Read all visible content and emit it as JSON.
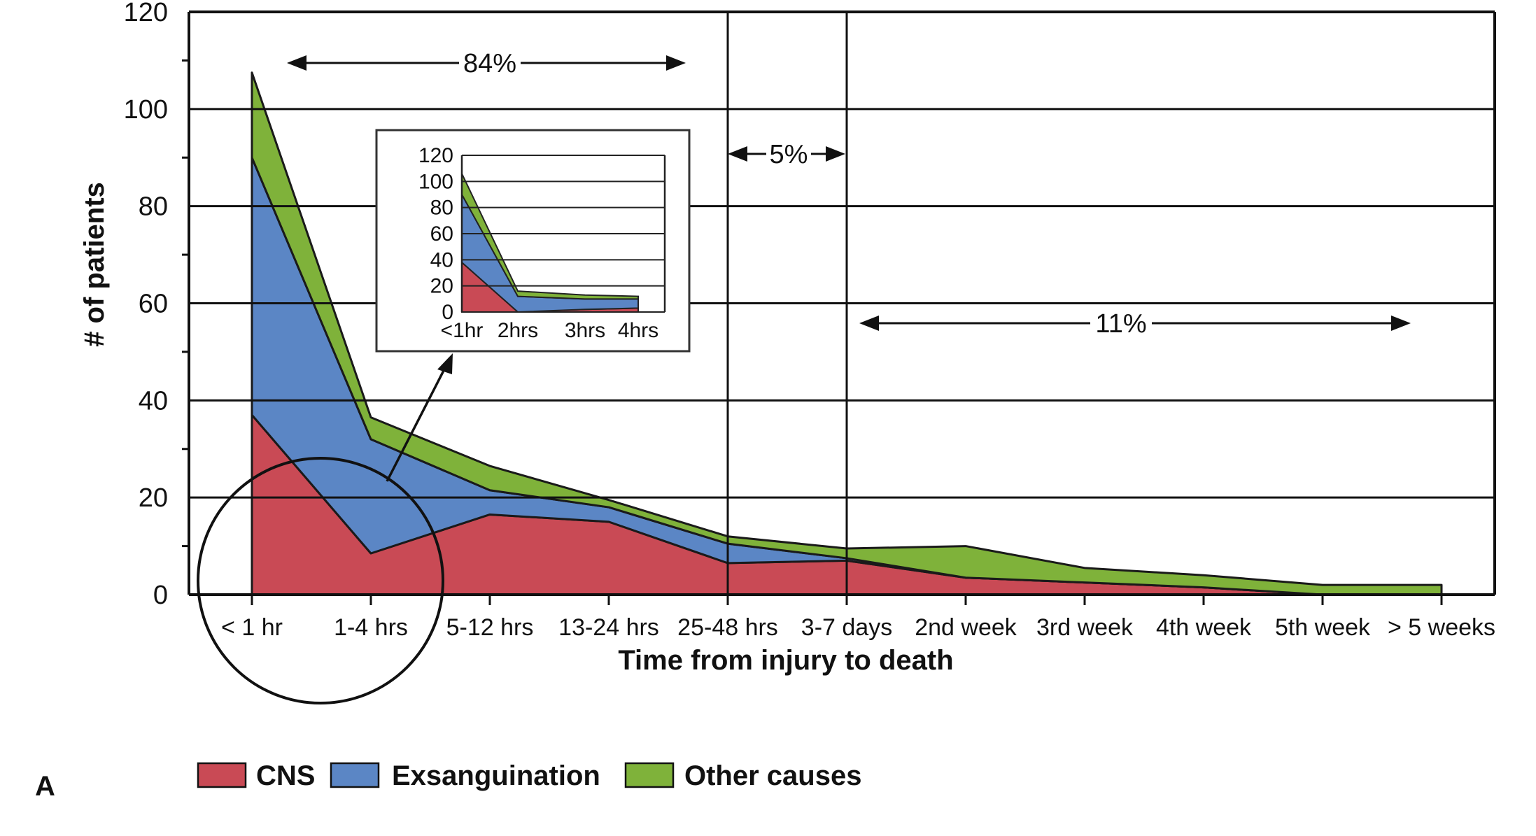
{
  "chart_data": {
    "type": "area",
    "stacked": true,
    "title": "",
    "xlabel": "Time from injury to death",
    "ylabel": "# of patients",
    "ylim": [
      0,
      120
    ],
    "yticks": [
      0,
      20,
      40,
      60,
      80,
      100,
      120
    ],
    "grid": true,
    "legend_position": "bottom-left",
    "categories": [
      "< 1 hr",
      "1-4 hrs",
      "5-12 hrs",
      "13-24 hrs",
      "25-48 hrs",
      "3-7 days",
      "2nd week",
      "3rd week",
      "4th week",
      "5th week",
      "> 5 weeks"
    ],
    "series": [
      {
        "name": "CNS",
        "color": "#c94a55",
        "values": [
          37,
          8.5,
          16.5,
          15,
          6.5,
          7,
          3.5,
          2.5,
          1.5,
          0,
          0
        ]
      },
      {
        "name": "Exsanguination",
        "color": "#5b86c5",
        "values": [
          53,
          23.5,
          5,
          3,
          4,
          0.5,
          0,
          0,
          0,
          0,
          0
        ]
      },
      {
        "name": "Other causes",
        "color": "#7fb23a",
        "values": [
          17.5,
          4.5,
          5,
          1.5,
          1.5,
          2,
          6.5,
          3,
          2.5,
          2,
          2
        ]
      }
    ],
    "annotations": [
      {
        "text": "84%",
        "span": [
          "< 1 hr",
          "25-48 hrs"
        ]
      },
      {
        "text": "5%",
        "span": [
          "25-48 hrs",
          "3-7 days"
        ]
      },
      {
        "text": "11%",
        "span": [
          "3-7 days",
          "> 5 weeks"
        ]
      }
    ],
    "inset": {
      "type": "area",
      "stacked": true,
      "categories": [
        "<1hr",
        "2hrs",
        "3hrs",
        "4hrs"
      ],
      "ylim": [
        0,
        120
      ],
      "yticks": [
        0,
        20,
        40,
        60,
        80,
        100,
        120
      ],
      "series": [
        {
          "name": "CNS",
          "values": [
            38,
            0,
            2,
            3
          ]
        },
        {
          "name": "Exsanguination",
          "values": [
            52,
            12,
            8,
            7
          ]
        },
        {
          "name": "Other causes",
          "values": [
            16,
            4,
            3,
            2
          ]
        }
      ]
    },
    "panel_label": "A"
  }
}
